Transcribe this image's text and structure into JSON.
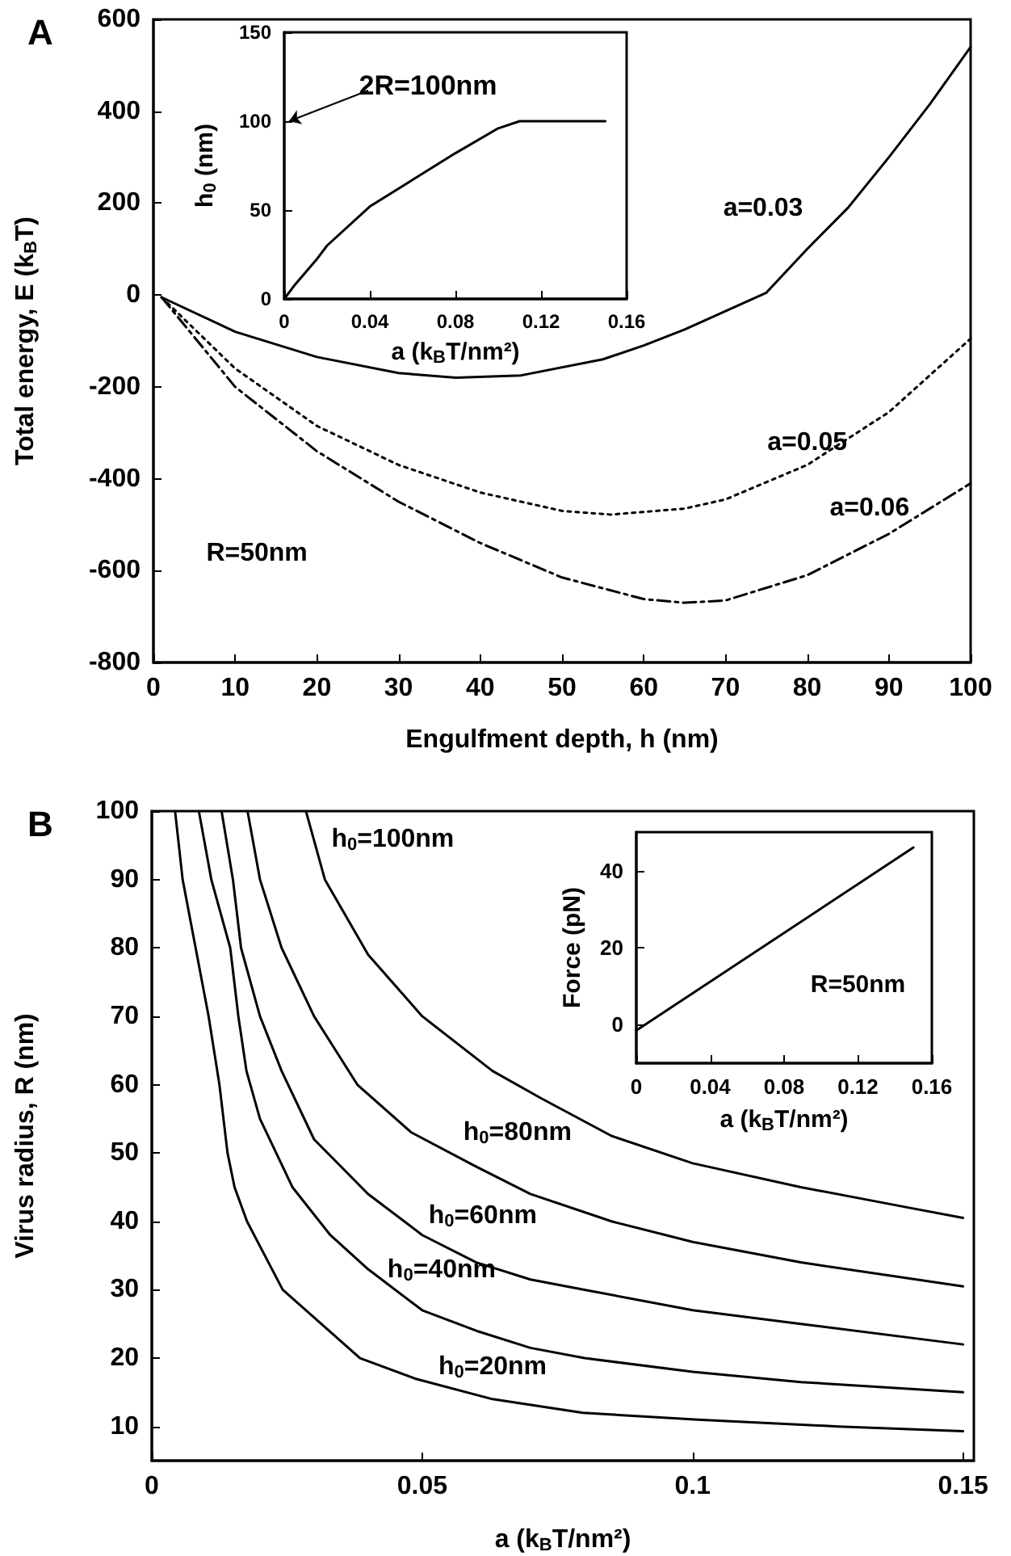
{
  "chart_data": [
    {
      "type": "line",
      "title": "A",
      "xlabel": "Engulfment depth, h (nm)",
      "ylabel": "Total energy, E (k$_{B}$T)",
      "xlim": [
        0,
        100
      ],
      "ylim": [
        -800,
        600
      ],
      "xticks": [
        0,
        10,
        20,
        30,
        40,
        50,
        60,
        70,
        80,
        90,
        100
      ],
      "yticks": [
        -800,
        -600,
        -400,
        -200,
        0,
        200,
        400,
        600
      ],
      "grid": false,
      "legend": false,
      "marker": "none",
      "annotations": [
        "R=50nm"
      ],
      "series": [
        {
          "name": "a=0.03",
          "color": "#000000",
          "line_style": "solid",
          "x": [
            1,
            10,
            20,
            30,
            37,
            45,
            55,
            60,
            65,
            70,
            75,
            80,
            85,
            90,
            95,
            100
          ],
          "values": [
            -5,
            -80,
            -135,
            -170,
            -180,
            -175,
            -140,
            -110,
            -75,
            -35,
            5,
            100,
            190,
            300,
            415,
            540
          ]
        },
        {
          "name": "a=0.05",
          "color": "#000000",
          "line_style": "dotted",
          "x": [
            1,
            10,
            20,
            30,
            40,
            50,
            56,
            65,
            70,
            80,
            90,
            100
          ],
          "values": [
            -5,
            -160,
            -285,
            -370,
            -430,
            -470,
            -478,
            -465,
            -445,
            -370,
            -255,
            -95
          ]
        },
        {
          "name": "a=0.06",
          "color": "#000000",
          "line_style": "dashed",
          "x": [
            1,
            10,
            20,
            30,
            40,
            50,
            60,
            65,
            70,
            80,
            90,
            100
          ],
          "values": [
            -5,
            -200,
            -340,
            -450,
            -540,
            -615,
            -662,
            -670,
            -665,
            -610,
            -520,
            -410
          ]
        }
      ]
    },
    {
      "type": "line",
      "xlabel": "a (k$_{B}$T/nm²)",
      "ylabel": "h$_{0}$ (nm)",
      "xlim": [
        0,
        0.16
      ],
      "ylim": [
        0,
        150
      ],
      "xticks": [
        0,
        0.04,
        0.08,
        0.12,
        0.16
      ],
      "yticks": [
        0,
        50,
        100,
        150
      ],
      "grid": false,
      "legend": false,
      "marker": "none",
      "annotations": [
        "2R=100nm"
      ],
      "series": [
        {
          "color": "#000000",
          "line_style": "solid",
          "x": [
            0,
            0.005,
            0.015,
            0.02,
            0.04,
            0.06,
            0.08,
            0.1,
            0.11,
            0.15
          ],
          "values": [
            0,
            8,
            22,
            30,
            52,
            67,
            82,
            96,
            100,
            100
          ]
        }
      ]
    },
    {
      "type": "line",
      "title": "B",
      "xlabel": "a (k$_{B}$T/nm²)",
      "ylabel": "Virus radius, R (nm)",
      "xlim": [
        0,
        0.152
      ],
      "ylim": [
        5,
        100
      ],
      "xticks": [
        0,
        0.05,
        0.1,
        0.15
      ],
      "yticks": [
        10,
        20,
        30,
        40,
        50,
        60,
        70,
        80,
        90,
        100
      ],
      "grid": false,
      "legend": false,
      "marker": "none",
      "series": [
        {
          "name": "h$_{0}$=20nm",
          "color": "#000000",
          "line_style": "solid",
          "x": [
            0.0043,
            0.0057,
            0.0081,
            0.0105,
            0.0125,
            0.014,
            0.0153,
            0.0176,
            0.0242,
            0.0385,
            0.0487,
            0.063,
            0.0797,
            0.101,
            0.127,
            0.15
          ],
          "values": [
            100,
            90,
            80,
            70,
            60,
            50,
            45,
            40,
            30,
            20,
            17,
            14,
            12,
            11,
            10,
            9.3
          ]
        },
        {
          "name": "h$_{0}$=40nm",
          "color": "#000000",
          "line_style": "solid",
          "x": [
            0.0087,
            0.011,
            0.0145,
            0.016,
            0.0175,
            0.02,
            0.026,
            0.033,
            0.04,
            0.05,
            0.06,
            0.07,
            0.08,
            0.1,
            0.12,
            0.15
          ],
          "values": [
            100,
            90,
            80,
            70,
            62,
            55,
            45,
            38,
            33,
            27,
            24,
            21.5,
            20,
            18,
            16.5,
            15
          ]
        },
        {
          "name": "h$_{0}$=60nm",
          "color": "#000000",
          "line_style": "solid",
          "x": [
            0.0129,
            0.015,
            0.0165,
            0.02,
            0.024,
            0.03,
            0.04,
            0.05,
            0.06,
            0.07,
            0.08,
            0.1,
            0.12,
            0.15
          ],
          "values": [
            100,
            90,
            80,
            70,
            62,
            52,
            44,
            38,
            34,
            31.5,
            30,
            27,
            25,
            22
          ]
        },
        {
          "name": "h$_{0}$=80nm",
          "color": "#000000",
          "line_style": "solid",
          "x": [
            0.0177,
            0.02,
            0.024,
            0.03,
            0.038,
            0.048,
            0.06,
            0.07,
            0.085,
            0.1,
            0.12,
            0.15
          ],
          "values": [
            100,
            90,
            80,
            70,
            60,
            53,
            48,
            44,
            40,
            37,
            34,
            30.5
          ]
        },
        {
          "name": "h$_{0}$=100nm",
          "color": "#000000",
          "line_style": "solid",
          "x": [
            0.0285,
            0.032,
            0.04,
            0.05,
            0.063,
            0.072,
            0.085,
            0.1,
            0.12,
            0.14,
            0.15
          ],
          "values": [
            100,
            90,
            79,
            70,
            62,
            58,
            52.5,
            48.5,
            45,
            42,
            40.5
          ]
        }
      ]
    },
    {
      "type": "line",
      "xlabel": "a (k$_{B}$T/nm²)",
      "ylabel": "Force (pN)",
      "xlim": [
        0,
        0.16
      ],
      "ylim": [
        -10,
        50
      ],
      "xticks": [
        0,
        0.04,
        0.08,
        0.12,
        0.16
      ],
      "yticks": [
        0,
        20,
        40
      ],
      "grid": false,
      "legend": false,
      "marker": "none",
      "annotations": [
        "R=50nm"
      ],
      "series": [
        {
          "color": "#000000",
          "line_style": "solid",
          "x": [
            0,
            0.15
          ],
          "values": [
            -1.5,
            46
          ]
        }
      ]
    }
  ]
}
